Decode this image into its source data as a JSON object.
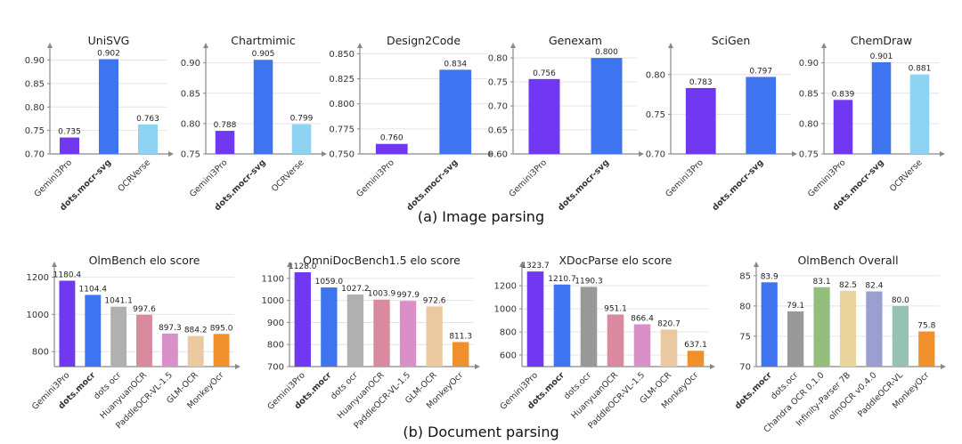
{
  "captions": {
    "image_parsing": "(a) Image parsing",
    "document_parsing": "(b) Document parsing"
  },
  "colors": {
    "Gemini3Pro": "#7038f0",
    "dots.mocr-svg": "#3f74f0",
    "dots.mocr": "#3f74f0",
    "OCRVerse": "#8fd3f2",
    "dots ocr": "#b0b0b0",
    "HuanyuanOCR": "#d98a9f",
    "PaddleOCR-VL-1.5": "#d990c8",
    "GLM-OCR": "#ebc9a0",
    "MonkeyOcr": "#f0902d",
    "Chandra OCR 0.1.0": "#92c07c",
    "Infinity-Parser 7B": "#e9d59d",
    "olmOCR v0.4.0": "#9a9fcf",
    "PaddleOCR-VL": "#94c2b3"
  },
  "chart_data": [
    {
      "type": "bar",
      "title": "UniSVG",
      "categories": [
        "Gemini3Pro",
        "dots.mocr-svg",
        "OCRVerse"
      ],
      "values": [
        0.735,
        0.902,
        0.763
      ],
      "value_labels": [
        "0.735",
        "0.902",
        "0.763"
      ],
      "ylim": [
        0.7,
        0.92
      ],
      "yticks": [
        "0.70",
        "0.75",
        "0.80",
        "0.85",
        "0.90"
      ],
      "bold": [
        "dots.mocr-svg"
      ]
    },
    {
      "type": "bar",
      "title": "Chartmimic",
      "categories": [
        "Gemini3Pro",
        "dots.mocr-svg",
        "OCRVerse"
      ],
      "values": [
        0.788,
        0.905,
        0.799
      ],
      "value_labels": [
        "0.788",
        "0.905",
        "0.799"
      ],
      "ylim": [
        0.75,
        0.92
      ],
      "yticks": [
        "0.75",
        "0.80",
        "0.85",
        "0.90"
      ],
      "bold": [
        "dots.mocr-svg"
      ]
    },
    {
      "type": "bar",
      "title": "Design2Code",
      "categories": [
        "Gemini3Pro",
        "dots.mocr-svg"
      ],
      "values": [
        0.76,
        0.834
      ],
      "value_labels": [
        "0.760",
        "0.834"
      ],
      "ylim": [
        0.75,
        0.853
      ],
      "yticks": [
        "0.750",
        "0.775",
        "0.800",
        "0.825",
        "0.850"
      ],
      "bold": [
        "dots.mocr-svg"
      ]
    },
    {
      "type": "bar",
      "title": "Genexam",
      "categories": [
        "Gemini3Pro",
        "dots.mocr-svg"
      ],
      "values": [
        0.756,
        0.8
      ],
      "value_labels": [
        "0.756",
        "0.800"
      ],
      "ylim": [
        0.6,
        0.815
      ],
      "yticks": [
        "0.60",
        "0.65",
        "0.70",
        "0.75",
        "0.80"
      ],
      "bold": [
        "dots.mocr-svg"
      ]
    },
    {
      "type": "bar",
      "title": "SciGen",
      "categories": [
        "Gemini3Pro",
        "dots.mocr-svg"
      ],
      "values": [
        0.783,
        0.797
      ],
      "value_labels": [
        "0.783",
        "0.797"
      ],
      "ylim": [
        0.7,
        0.83
      ],
      "yticks": [
        "0.70",
        "0.75",
        "0.80"
      ],
      "bold": [
        "dots.mocr-svg"
      ]
    },
    {
      "type": "bar",
      "title": "ChemDraw",
      "categories": [
        "Gemini3Pro",
        "dots.mocr-svg",
        "OCRVerse"
      ],
      "values": [
        0.839,
        0.901,
        0.881
      ],
      "value_labels": [
        "0.839",
        "0.901",
        "0.881"
      ],
      "ylim": [
        0.75,
        0.92
      ],
      "yticks": [
        "0.75",
        "0.80",
        "0.85",
        "0.90"
      ],
      "bold": [
        "dots.mocr-svg"
      ]
    },
    {
      "type": "bar",
      "title": "OlmBench elo score",
      "categories": [
        "Gemini3Pro",
        "dots.mocr",
        "dots ocr",
        "HuanyuanOCR",
        "PaddleOCR-VL-1.5",
        "GLM-OCR",
        "MonkeyOcr"
      ],
      "values": [
        1180.4,
        1104.4,
        1041.1,
        997.6,
        897.3,
        884.2,
        895.0
      ],
      "value_labels": [
        "1180.4",
        "1104.4",
        "1041.1",
        "997.6",
        "897.3",
        "884.2",
        "895.0"
      ],
      "ylim": [
        720,
        1240
      ],
      "yticks": [
        "800",
        "1000",
        "1200"
      ],
      "bold": [
        "dots.mocr"
      ]
    },
    {
      "type": "bar",
      "title": "OmniDocBench1.5 elo score",
      "categories": [
        "Gemini3Pro",
        "dots.mocr",
        "dots ocr",
        "HuanyuanOCR",
        "PaddleOCR-VL-1.5",
        "GLM-OCR",
        "MonkeyOcr"
      ],
      "values": [
        1128.0,
        1059.0,
        1027.2,
        1003.9,
        997.9,
        972.6,
        811.3
      ],
      "value_labels": [
        "1128.0",
        "1059.0",
        "1027.2",
        "1003.9",
        "997.9",
        "972.6",
        "811.3"
      ],
      "ylim": [
        700,
        1140
      ],
      "yticks": [
        "700",
        "800",
        "900",
        "1000",
        "1100"
      ],
      "bold": [
        "dots.mocr"
      ]
    },
    {
      "type": "bar",
      "title": "XDocParse elo score",
      "categories": [
        "Gemini3Pro",
        "dots.mocr",
        "dots.ocr",
        "HuanyuanOCR",
        "PaddleOCR-VL-1.5",
        "GLM-OCR",
        "MonkeyOcr"
      ],
      "values": [
        1323.7,
        1210.7,
        1190.3,
        951.1,
        866.4,
        820.7,
        637.1
      ],
      "value_labels": [
        "1323.7",
        "1210.7",
        "1190.3",
        "951.1",
        "866.4",
        "820.7",
        "637.1"
      ],
      "ylim": [
        500,
        1340
      ],
      "yticks": [
        "600",
        "800",
        "1000",
        "1200"
      ],
      "bold": [
        "dots.mocr"
      ]
    },
    {
      "type": "bar",
      "title": "OlmBench Overall",
      "categories": [
        "dots.mocr",
        "dots.ocr",
        "Chandra OCR 0.1.0",
        "Infinity-Parser 7B",
        "olmOCR v0.4.0",
        "PaddleOCR-VL",
        "MonkeyOcr"
      ],
      "values": [
        83.9,
        79.1,
        83.1,
        82.5,
        82.4,
        80.0,
        75.8
      ],
      "value_labels": [
        "83.9",
        "79.1",
        "83.1",
        "82.5",
        "82.4",
        "80.0",
        "75.8"
      ],
      "ylim": [
        70,
        86
      ],
      "yticks": [
        "70",
        "75",
        "80",
        "85"
      ],
      "bold": [
        "dots.mocr"
      ]
    }
  ]
}
